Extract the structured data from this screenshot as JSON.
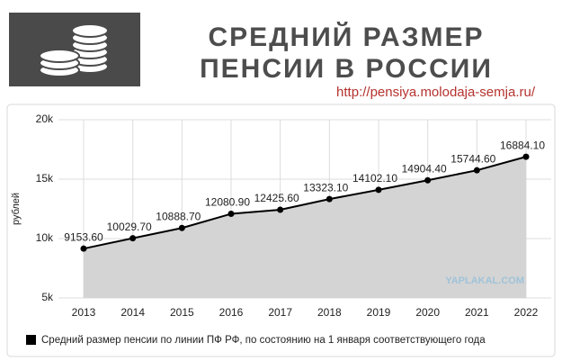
{
  "chart_data": {
    "type": "area",
    "title": [
      "СРЕДНИЙ РАЗМЕР",
      "ПЕНСИИ В РОССИИ"
    ],
    "subtitle": "http://pensiya.molodaja-semja.ru/",
    "y_label": "рублей",
    "annotation": "YAPLAKAL.COM",
    "categories": [
      "2013",
      "2014",
      "2015",
      "2016",
      "2017",
      "2018",
      "2019",
      "2020",
      "2021",
      "2022"
    ],
    "series": [
      {
        "name": "Средний размер пенсии по линии ПФ РФ, по состоянию на 1 января соответствующего года",
        "color": "#000000",
        "fill": "#d4d4d4",
        "values": [
          9153.6,
          10029.7,
          10888.7,
          12080.9,
          12425.6,
          13323.1,
          14102.1,
          14904.4,
          15744.6,
          16884.1
        ],
        "value_labels": [
          "9153.60",
          "10029.70",
          "10888.70",
          "12080.90",
          "12425.60",
          "13323.10",
          "14102.10",
          "14904.40",
          "15744.60",
          "16884.10"
        ]
      }
    ],
    "ylim": [
      5000,
      20000
    ],
    "yticks": [
      {
        "value": 5000,
        "label": "5k"
      },
      {
        "value": 10000,
        "label": "10k"
      },
      {
        "value": 15000,
        "label": "15k"
      },
      {
        "value": 20000,
        "label": "20k"
      }
    ],
    "grid": true
  }
}
